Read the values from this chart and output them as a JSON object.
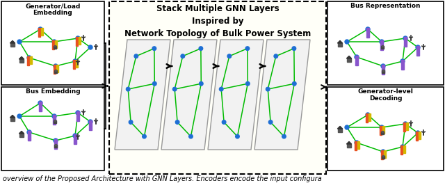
{
  "fig_width": 6.4,
  "fig_height": 2.73,
  "dpi": 100,
  "bg_color": "#ffffff",
  "caption": "overview of the Proposed Architecture with GNN Layers. Encoders encode the input configura",
  "caption_fontsize": 7.0,
  "left_box1_title": "Generator/Load\nEmbedding",
  "left_box2_title": "Bus Embedding",
  "right_box1_title": "Bus Representation",
  "right_box2_title": "Generator-level\nDecoding",
  "center_title": "Stack Multiple GNN Layers\nInspired by\nNetwork Topology of Bulk Power System",
  "node_color": "#1E6FD4",
  "edge_color": "#00BB00",
  "box_bg": "#ffffff",
  "dashed_box_bg": "#fffff8",
  "arrow_color": "#000000",
  "layer_front_color": "#f2f2f2",
  "layer_top_color": "#e0e0e0",
  "layer_right_color": "#d0d0d0",
  "layer_edge_color": "#999999"
}
